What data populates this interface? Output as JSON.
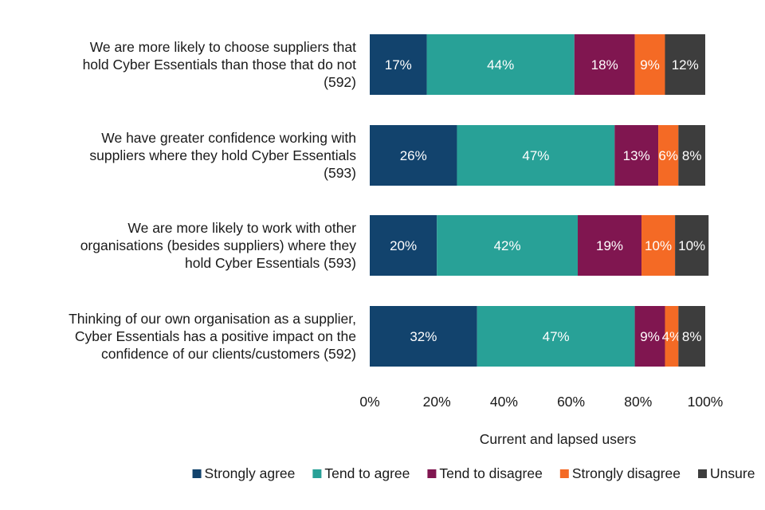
{
  "chart_data": {
    "type": "bar",
    "orientation": "horizontal",
    "stacked": true,
    "categories": [
      [
        "We are more likely to choose suppliers that",
        "hold Cyber Essentials than those that do not",
        "(592)"
      ],
      [
        "We have greater confidence working with",
        "suppliers where they hold Cyber Essentials",
        "(593)"
      ],
      [
        "We are more likely to work with other",
        "organisations (besides suppliers) where they",
        "hold Cyber Essentials (593)"
      ],
      [
        "Thinking of our own organisation as a supplier,",
        "Cyber Essentials has a positive impact on the",
        "confidence of our clients/customers (592)"
      ]
    ],
    "series": [
      {
        "name": "Strongly agree",
        "color": "#12436d",
        "values": [
          17,
          26,
          20,
          32
        ]
      },
      {
        "name": "Tend to agree",
        "color": "#28a197",
        "values": [
          44,
          47,
          42,
          47
        ]
      },
      {
        "name": "Tend to disagree",
        "color": "#801650",
        "values": [
          18,
          13,
          19,
          9
        ]
      },
      {
        "name": "Strongly disagree",
        "color": "#f46a25",
        "values": [
          9,
          6,
          10,
          4
        ]
      },
      {
        "name": "Unsure",
        "color": "#3d3d3d",
        "values": [
          12,
          8,
          10,
          8
        ]
      }
    ],
    "xlim": [
      0,
      100
    ],
    "xticks": [
      0,
      20,
      40,
      60,
      80,
      100
    ],
    "tick_suffix": "%",
    "xlabel": "Current and lapsed users",
    "legend_position": "bottom",
    "grid": false
  }
}
